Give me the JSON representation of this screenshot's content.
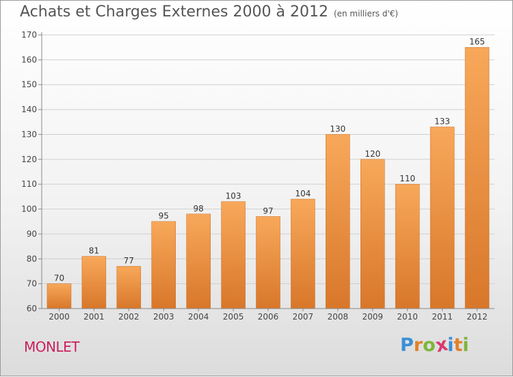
{
  "chart_title": "Achats et Charges Externes 2000 à 2012",
  "chart_unit": "(en milliers d'€)",
  "commune": "MONLET",
  "logo": {
    "letters": [
      "P",
      "r",
      "o",
      "x",
      "i",
      "t",
      "i"
    ],
    "colors": [
      "#3a8fd6",
      "#e0822a",
      "#7cb63a",
      "#d83c6e",
      "#3a8fd6",
      "#e0822a",
      "#7cb63a"
    ]
  },
  "colors": {
    "bar_light": "#f8a85a",
    "bar_dark": "#d8772a",
    "axis": "#888888",
    "grid": "#d0d0d0"
  },
  "chart_data": {
    "type": "bar",
    "categories": [
      "2000",
      "2001",
      "2002",
      "2003",
      "2004",
      "2005",
      "2006",
      "2007",
      "2008",
      "2009",
      "2010",
      "2011",
      "2012"
    ],
    "values": [
      70,
      81,
      77,
      95,
      98,
      103,
      97,
      104,
      130,
      120,
      110,
      133,
      165
    ],
    "ylim": [
      60,
      170
    ],
    "yticks": [
      60,
      70,
      80,
      90,
      100,
      110,
      120,
      130,
      140,
      150,
      160,
      170
    ],
    "title": "Achats et Charges Externes 2000 à 2012",
    "xlabel": "",
    "ylabel": "",
    "grid": true
  }
}
